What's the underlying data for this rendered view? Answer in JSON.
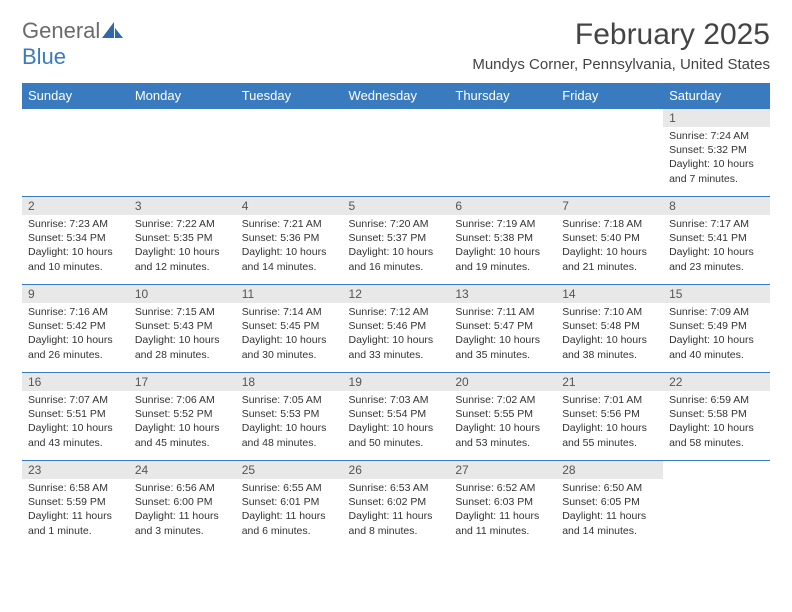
{
  "logo": {
    "text_gray": "General",
    "text_blue": "Blue"
  },
  "header": {
    "month_title": "February 2025",
    "location": "Mundys Corner, Pennsylvania, United States"
  },
  "colors": {
    "header_bg": "#3a7bbf",
    "header_text": "#ffffff",
    "day_number_bg": "#e8e8e8",
    "row_border": "#3a7bbf",
    "logo_gray": "#6b6b6b",
    "logo_blue": "#3a7bbf",
    "body_text": "#333333"
  },
  "typography": {
    "month_title_fontsize": 30,
    "location_fontsize": 15,
    "weekday_fontsize": 13,
    "daynum_fontsize": 12,
    "cell_fontsize": 10.5
  },
  "weekdays": [
    "Sunday",
    "Monday",
    "Tuesday",
    "Wednesday",
    "Thursday",
    "Friday",
    "Saturday"
  ],
  "grid": [
    [
      null,
      null,
      null,
      null,
      null,
      null,
      {
        "n": "1",
        "sunrise": "Sunrise: 7:24 AM",
        "sunset": "Sunset: 5:32 PM",
        "day1": "Daylight: 10 hours",
        "day2": "and 7 minutes."
      }
    ],
    [
      {
        "n": "2",
        "sunrise": "Sunrise: 7:23 AM",
        "sunset": "Sunset: 5:34 PM",
        "day1": "Daylight: 10 hours",
        "day2": "and 10 minutes."
      },
      {
        "n": "3",
        "sunrise": "Sunrise: 7:22 AM",
        "sunset": "Sunset: 5:35 PM",
        "day1": "Daylight: 10 hours",
        "day2": "and 12 minutes."
      },
      {
        "n": "4",
        "sunrise": "Sunrise: 7:21 AM",
        "sunset": "Sunset: 5:36 PM",
        "day1": "Daylight: 10 hours",
        "day2": "and 14 minutes."
      },
      {
        "n": "5",
        "sunrise": "Sunrise: 7:20 AM",
        "sunset": "Sunset: 5:37 PM",
        "day1": "Daylight: 10 hours",
        "day2": "and 16 minutes."
      },
      {
        "n": "6",
        "sunrise": "Sunrise: 7:19 AM",
        "sunset": "Sunset: 5:38 PM",
        "day1": "Daylight: 10 hours",
        "day2": "and 19 minutes."
      },
      {
        "n": "7",
        "sunrise": "Sunrise: 7:18 AM",
        "sunset": "Sunset: 5:40 PM",
        "day1": "Daylight: 10 hours",
        "day2": "and 21 minutes."
      },
      {
        "n": "8",
        "sunrise": "Sunrise: 7:17 AM",
        "sunset": "Sunset: 5:41 PM",
        "day1": "Daylight: 10 hours",
        "day2": "and 23 minutes."
      }
    ],
    [
      {
        "n": "9",
        "sunrise": "Sunrise: 7:16 AM",
        "sunset": "Sunset: 5:42 PM",
        "day1": "Daylight: 10 hours",
        "day2": "and 26 minutes."
      },
      {
        "n": "10",
        "sunrise": "Sunrise: 7:15 AM",
        "sunset": "Sunset: 5:43 PM",
        "day1": "Daylight: 10 hours",
        "day2": "and 28 minutes."
      },
      {
        "n": "11",
        "sunrise": "Sunrise: 7:14 AM",
        "sunset": "Sunset: 5:45 PM",
        "day1": "Daylight: 10 hours",
        "day2": "and 30 minutes."
      },
      {
        "n": "12",
        "sunrise": "Sunrise: 7:12 AM",
        "sunset": "Sunset: 5:46 PM",
        "day1": "Daylight: 10 hours",
        "day2": "and 33 minutes."
      },
      {
        "n": "13",
        "sunrise": "Sunrise: 7:11 AM",
        "sunset": "Sunset: 5:47 PM",
        "day1": "Daylight: 10 hours",
        "day2": "and 35 minutes."
      },
      {
        "n": "14",
        "sunrise": "Sunrise: 7:10 AM",
        "sunset": "Sunset: 5:48 PM",
        "day1": "Daylight: 10 hours",
        "day2": "and 38 minutes."
      },
      {
        "n": "15",
        "sunrise": "Sunrise: 7:09 AM",
        "sunset": "Sunset: 5:49 PM",
        "day1": "Daylight: 10 hours",
        "day2": "and 40 minutes."
      }
    ],
    [
      {
        "n": "16",
        "sunrise": "Sunrise: 7:07 AM",
        "sunset": "Sunset: 5:51 PM",
        "day1": "Daylight: 10 hours",
        "day2": "and 43 minutes."
      },
      {
        "n": "17",
        "sunrise": "Sunrise: 7:06 AM",
        "sunset": "Sunset: 5:52 PM",
        "day1": "Daylight: 10 hours",
        "day2": "and 45 minutes."
      },
      {
        "n": "18",
        "sunrise": "Sunrise: 7:05 AM",
        "sunset": "Sunset: 5:53 PM",
        "day1": "Daylight: 10 hours",
        "day2": "and 48 minutes."
      },
      {
        "n": "19",
        "sunrise": "Sunrise: 7:03 AM",
        "sunset": "Sunset: 5:54 PM",
        "day1": "Daylight: 10 hours",
        "day2": "and 50 minutes."
      },
      {
        "n": "20",
        "sunrise": "Sunrise: 7:02 AM",
        "sunset": "Sunset: 5:55 PM",
        "day1": "Daylight: 10 hours",
        "day2": "and 53 minutes."
      },
      {
        "n": "21",
        "sunrise": "Sunrise: 7:01 AM",
        "sunset": "Sunset: 5:56 PM",
        "day1": "Daylight: 10 hours",
        "day2": "and 55 minutes."
      },
      {
        "n": "22",
        "sunrise": "Sunrise: 6:59 AM",
        "sunset": "Sunset: 5:58 PM",
        "day1": "Daylight: 10 hours",
        "day2": "and 58 minutes."
      }
    ],
    [
      {
        "n": "23",
        "sunrise": "Sunrise: 6:58 AM",
        "sunset": "Sunset: 5:59 PM",
        "day1": "Daylight: 11 hours",
        "day2": "and 1 minute."
      },
      {
        "n": "24",
        "sunrise": "Sunrise: 6:56 AM",
        "sunset": "Sunset: 6:00 PM",
        "day1": "Daylight: 11 hours",
        "day2": "and 3 minutes."
      },
      {
        "n": "25",
        "sunrise": "Sunrise: 6:55 AM",
        "sunset": "Sunset: 6:01 PM",
        "day1": "Daylight: 11 hours",
        "day2": "and 6 minutes."
      },
      {
        "n": "26",
        "sunrise": "Sunrise: 6:53 AM",
        "sunset": "Sunset: 6:02 PM",
        "day1": "Daylight: 11 hours",
        "day2": "and 8 minutes."
      },
      {
        "n": "27",
        "sunrise": "Sunrise: 6:52 AM",
        "sunset": "Sunset: 6:03 PM",
        "day1": "Daylight: 11 hours",
        "day2": "and 11 minutes."
      },
      {
        "n": "28",
        "sunrise": "Sunrise: 6:50 AM",
        "sunset": "Sunset: 6:05 PM",
        "day1": "Daylight: 11 hours",
        "day2": "and 14 minutes."
      },
      null
    ]
  ]
}
